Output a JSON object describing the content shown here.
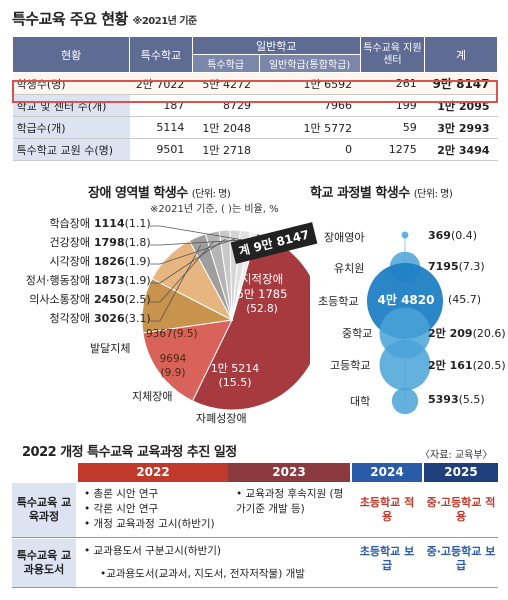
{
  "header": {
    "title": "특수교육 주요 현황",
    "note": "※2021년 기준"
  },
  "table": {
    "h_status": "현황",
    "h_special": "특수학교",
    "h_general": "일반학교",
    "h_class": "특수학급",
    "h_integrated": "일반학급(통합학급)",
    "h_center": "특수교육 지원센터",
    "h_total": "계",
    "rows": [
      {
        "label": "학생수(명)",
        "special": "2만 7022",
        "cls": "5만 4272",
        "integ": "1만 6592",
        "center": "261",
        "total": "9만 8147"
      },
      {
        "label": "학교 및 센터 수(개)",
        "special": "187",
        "cls": "8729",
        "integ": "7966",
        "center": "199",
        "total": "1만 2095"
      },
      {
        "label": "학급수(개)",
        "special": "5114",
        "cls": "1만 2048",
        "integ": "1만 5772",
        "center": "59",
        "total": "3만 2993"
      },
      {
        "label": "특수학교 교원 수(명)",
        "special": "9501",
        "cls": "1만 2718",
        "integ": "0",
        "center": "1275",
        "total": "2만 3494"
      }
    ]
  },
  "disability": {
    "title": "장애 영역별 학생수",
    "unit": "(단위: 명)",
    "note": "※2021년 기준, ( )는 비율, %",
    "total_badge": "계 9만 8147",
    "big_label": "지적장애",
    "big_value": "5만 1785",
    "big_pct": "(52.8)",
    "autism_value": "1만 5214",
    "autism_pct": "(15.5)",
    "autism_label": "자폐성장애",
    "physical_value": "9694",
    "physical_pct": "(9.9)",
    "physical_label": "지체장애",
    "dev_value": "9367",
    "dev_pct": "(9.5)",
    "dev_label": "발달지체",
    "small": [
      {
        "label": "학습장애",
        "value": "1114",
        "pct": "(1.1)"
      },
      {
        "label": "건강장애",
        "value": "1798",
        "pct": "(1.8)"
      },
      {
        "label": "시각장애",
        "value": "1826",
        "pct": "(1.9)"
      },
      {
        "label": "정서·행동장애",
        "value": "1873",
        "pct": "(1.9)"
      },
      {
        "label": "의사소통장애",
        "value": "2450",
        "pct": "(2.5)"
      },
      {
        "label": "청각장애",
        "value": "3026",
        "pct": "(3.1)"
      }
    ]
  },
  "courses": {
    "title": "학교 과정별 학생수",
    "unit": "(단위: 명)",
    "items": [
      {
        "label": "장애영아",
        "value": "369",
        "pct": "(0.4)"
      },
      {
        "label": "유치원",
        "value": "7195",
        "pct": "(7.3)"
      },
      {
        "label": "초등학교",
        "value": "4만 4820",
        "pct": "(45.7)"
      },
      {
        "label": "중학교",
        "value": "2만 209",
        "pct": "(20.6)"
      },
      {
        "label": "고등학교",
        "value": "2만 161",
        "pct": "(20.5)"
      },
      {
        "label": "대학",
        "value": "5393",
        "pct": "(5.5)"
      }
    ]
  },
  "schedule": {
    "title": "2022 개정 특수교육 교육과정 추진 일정",
    "source": "〈자료: 교육부〉",
    "years": [
      "2022",
      "2023",
      "2024",
      "2025"
    ],
    "row1_head": "특수교육 교육과정",
    "row1_items": [
      "• 총론 시안 연구",
      "• 각론 시안 연구",
      "• 개정 교육과정 고시(하반기)"
    ],
    "row1_2023": "• 교육과정 후속지원 (평가기준 개발 등)",
    "row1_2024": "초등학교 적용",
    "row1_2025": "중·고등학교 적용",
    "row2_head": "특수교육 교과용도서",
    "row2_item1": "• 교과용도서 구분고시(하반기)",
    "row2_item2": "•교과용도서(교과서, 지도서, 전자저작물) 개발",
    "row2_2024": "초등학교 보급",
    "row2_2025": "중·고등학교 보급"
  },
  "chart_data": [
    {
      "type": "pie",
      "title": "장애 영역별 학생수",
      "unit": "명",
      "categories": [
        "지적장애",
        "자폐성장애",
        "지체장애",
        "발달지체",
        "청각장애",
        "의사소통장애",
        "정서·행동장애",
        "시각장애",
        "건강장애",
        "학습장애"
      ],
      "values": [
        51785,
        15214,
        9694,
        9367,
        3026,
        2450,
        1873,
        1826,
        1798,
        1114
      ],
      "percent": [
        52.8,
        15.5,
        9.9,
        9.5,
        3.1,
        2.5,
        1.9,
        1.9,
        1.8,
        1.1
      ],
      "colors": [
        "#a63a3f",
        "#d9625b",
        "#c8934d",
        "#e7b680",
        "#9e9e9e",
        "#b5b5b5",
        "#c8c8c8",
        "#d5d5d5",
        "#e0e0e0",
        "#ebebeb"
      ]
    },
    {
      "type": "scatter",
      "title": "학교 과정별 학생수",
      "unit": "명",
      "categories": [
        "장애영아",
        "유치원",
        "초등학교",
        "중학교",
        "고등학교",
        "대학"
      ],
      "values": [
        369,
        7195,
        44820,
        20209,
        20161,
        5393
      ],
      "percent": [
        0.4,
        7.3,
        45.7,
        20.6,
        20.5,
        5.5
      ]
    }
  ]
}
